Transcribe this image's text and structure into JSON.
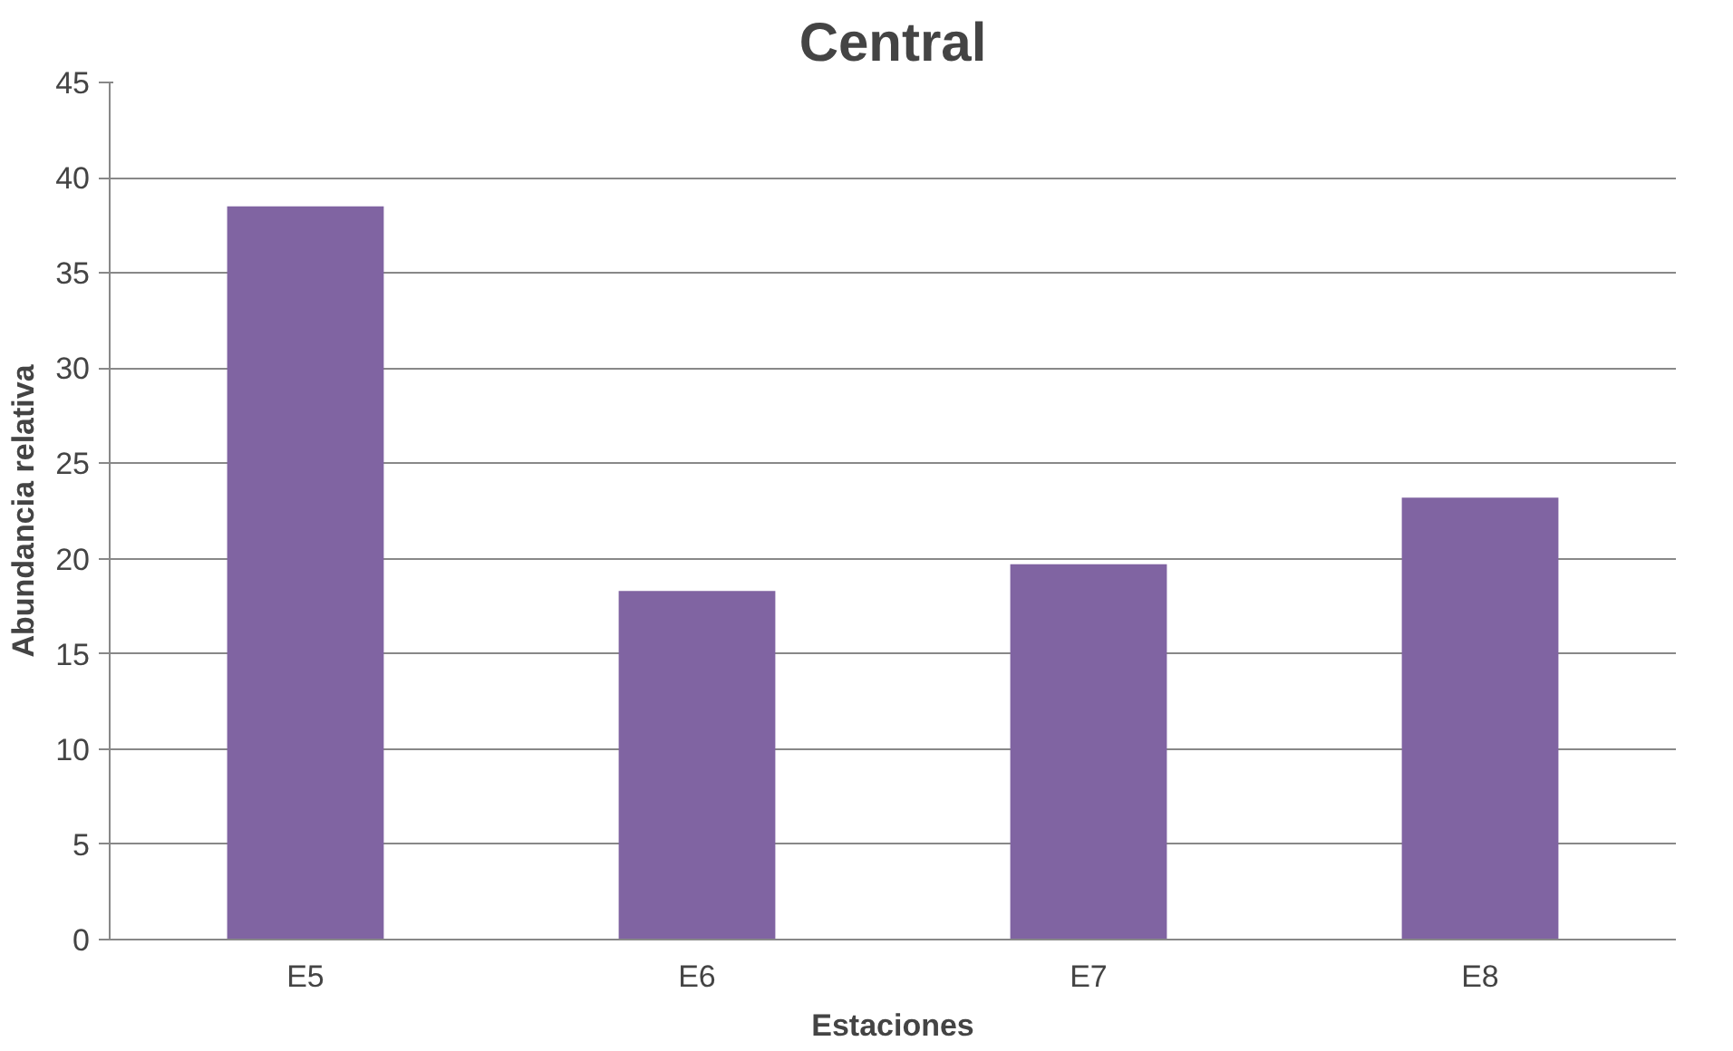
{
  "chart_data": {
    "type": "bar",
    "title": "Central",
    "xlabel": "Estaciones",
    "ylabel": "Abundancia relativa",
    "categories": [
      "E5",
      "E6",
      "E7",
      "E8"
    ],
    "values": [
      38.5,
      18.3,
      19.7,
      23.2
    ],
    "color": "#8064a2",
    "ylim": [
      0,
      45
    ],
    "yticks": [
      0,
      5,
      10,
      15,
      20,
      25,
      30,
      35,
      40,
      45
    ],
    "grid": "y"
  }
}
